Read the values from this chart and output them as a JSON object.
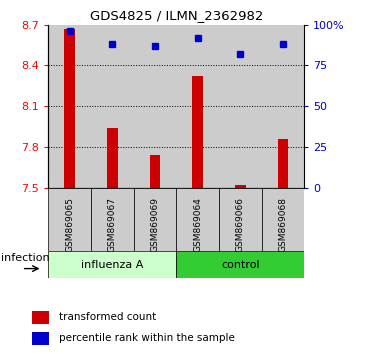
{
  "title": "GDS4825 / ILMN_2362982",
  "samples": [
    "GSM869065",
    "GSM869067",
    "GSM869069",
    "GSM869064",
    "GSM869066",
    "GSM869068"
  ],
  "red_values": [
    8.67,
    7.94,
    7.74,
    8.32,
    7.52,
    7.86
  ],
  "blue_values": [
    96,
    88,
    87,
    92,
    82,
    88
  ],
  "ylim_left": [
    7.5,
    8.7
  ],
  "ylim_right": [
    0,
    100
  ],
  "yticks_left": [
    7.5,
    7.8,
    8.1,
    8.4,
    8.7
  ],
  "yticks_right": [
    0,
    25,
    50,
    75,
    100
  ],
  "ytick_labels_right": [
    "0",
    "25",
    "50",
    "75",
    "100%"
  ],
  "group_labels": [
    "influenza A",
    "control"
  ],
  "factor_label": "infection",
  "bar_color": "#cc0000",
  "dot_color": "#0000cc",
  "influenza_bg": "#ccffcc",
  "control_bg": "#33cc33",
  "col_bg": "#cccccc",
  "bar_base": 7.5,
  "grid_dotted_values": [
    7.8,
    8.1,
    8.4
  ],
  "legend_red_label": "transformed count",
  "legend_blue_label": "percentile rank within the sample"
}
